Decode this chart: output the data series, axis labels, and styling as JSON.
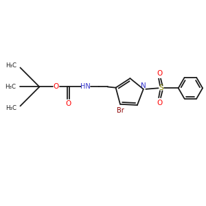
{
  "bg_color": "#ffffff",
  "line_color": "#1a1a1a",
  "bond_lw": 1.3,
  "colors": {
    "O": "#ff0000",
    "N": "#3333cc",
    "Br": "#8b0000",
    "S": "#888800",
    "C": "#1a1a1a"
  },
  "xlim": [
    0,
    10
  ],
  "ylim": [
    0,
    10
  ]
}
